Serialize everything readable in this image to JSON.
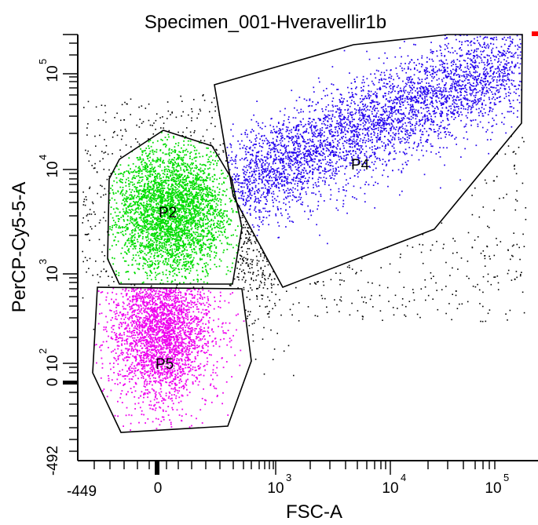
{
  "chart_data": {
    "type": "scatter",
    "title": "Specimen_001-Hveravellir1b",
    "xlabel": "FSC-A",
    "ylabel": "PerCP-Cy5-5-A",
    "x_scale": "biexponential",
    "y_scale": "biexponential",
    "x_ticks": [
      {
        "base": "-449",
        "exp": "",
        "value": -449
      },
      {
        "base": "0",
        "exp": "",
        "value": 0
      },
      {
        "base": "10",
        "exp": "3",
        "value": 1000
      },
      {
        "base": "10",
        "exp": "4",
        "value": 10000
      },
      {
        "base": "10",
        "exp": "5",
        "value": 100000
      }
    ],
    "y_ticks": [
      {
        "base": "-492",
        "exp": "",
        "value": -492
      },
      {
        "base": "0",
        "exp": "",
        "value": 0
      },
      {
        "base": "10",
        "exp": "2",
        "value": 100
      },
      {
        "base": "10",
        "exp": "3",
        "value": 1000
      },
      {
        "base": "10",
        "exp": "4",
        "value": 10000
      },
      {
        "base": "10",
        "exp": "5",
        "value": 100000
      }
    ],
    "gates": [
      {
        "name": "P2",
        "color": "#00dd00",
        "events": 3400
      },
      {
        "name": "P5",
        "color": "#ee00ee",
        "events": 2700
      },
      {
        "name": "P4",
        "color": "#2200ee",
        "events": 3900
      }
    ],
    "ungated_color": "#000000",
    "grid": false
  }
}
